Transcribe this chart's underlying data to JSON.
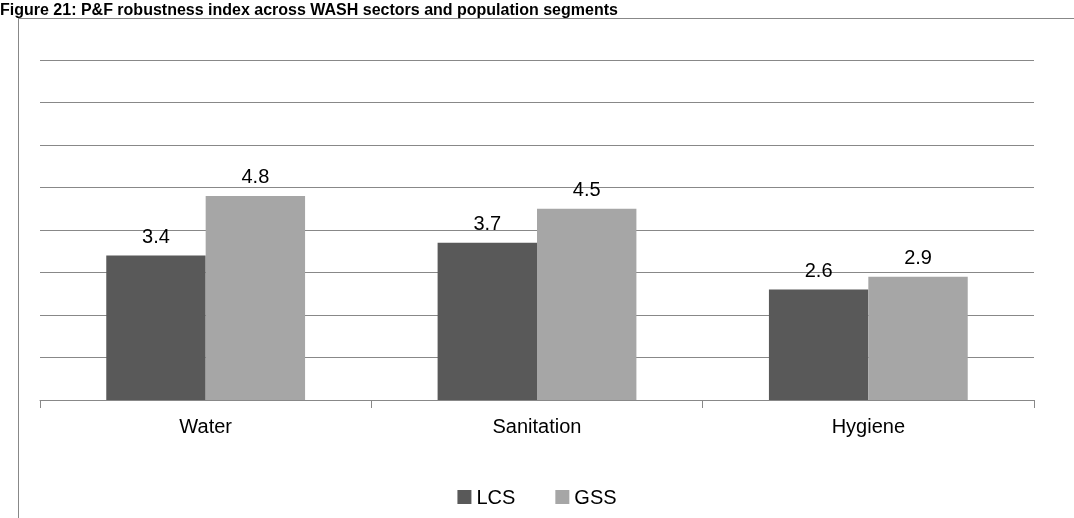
{
  "chart_data": {
    "type": "bar",
    "title": "Figure 21: P&F robustness index across WASH sectors and population segments",
    "categories": [
      "Water",
      "Sanitation",
      "Hygiene"
    ],
    "series": [
      {
        "name": "LCS",
        "color": "#595959",
        "values": [
          3.4,
          3.7,
          2.6
        ]
      },
      {
        "name": "GSS",
        "color": "#a6a6a6",
        "values": [
          4.8,
          4.5,
          2.9
        ]
      }
    ],
    "ylim": [
      0,
      8
    ],
    "yticks": [
      {
        "value": 0,
        "label": null
      },
      {
        "value": 1,
        "label": null
      },
      {
        "value": 2,
        "label": null
      },
      {
        "value": 3,
        "label": null
      },
      {
        "value": 4,
        "label": null
      },
      {
        "value": 5,
        "label": null
      },
      {
        "value": 6,
        "label": null
      },
      {
        "value": 7,
        "label": null
      },
      {
        "value": 8,
        "label": null
      }
    ],
    "tick_labels": "x",
    "grid": "y",
    "legend": "bottom",
    "data_labels": true
  }
}
